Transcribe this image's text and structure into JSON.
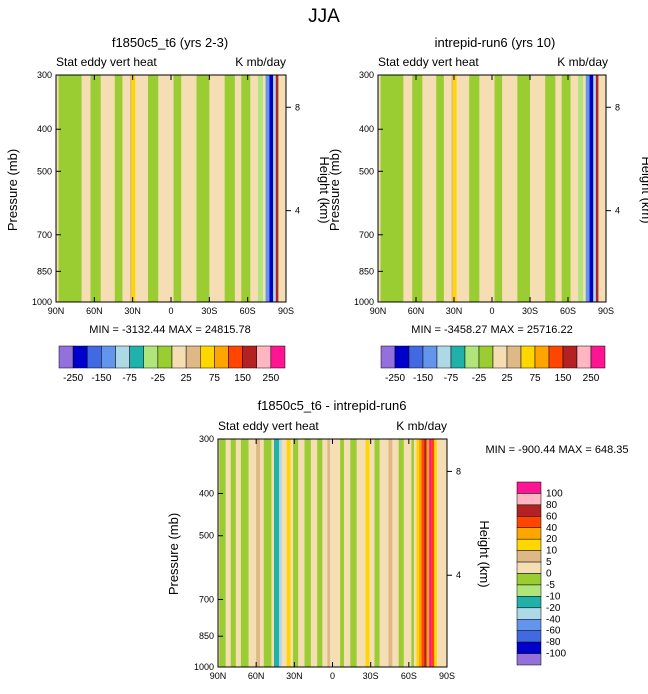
{
  "figure_title": "JJA",
  "colors": {
    "ctrl_fills": [
      "#9370db",
      "#0000cd",
      "#4169e1",
      "#6495ed",
      "#add8e6",
      "#20b2aa",
      "#b0e57c",
      "#9acd32",
      "#f5deb3",
      "#deb887",
      "#ffd700",
      "#ffa500",
      "#ff4500",
      "#b22222",
      "#ffb6c1",
      "#ff1493"
    ],
    "diff_fills": [
      "#9370db",
      "#0000cd",
      "#4169e1",
      "#6495ed",
      "#add8e6",
      "#20b2aa",
      "#b0e57c",
      "#9acd32",
      "#f5deb3",
      "#deb887",
      "#ffd700",
      "#ffa500",
      "#ff4500",
      "#b22222",
      "#ffb6c1",
      "#ff1493"
    ]
  },
  "chart_data": [
    {
      "id": "p1",
      "type": "heatmap",
      "title": "f1850c5_t6 (yrs 2-3)",
      "left_label": "Stat eddy vert heat",
      "right_label": "K mb/day",
      "xlabel": "",
      "ylabel": "Pressure (mb)",
      "ylabel_right": "Height (km)",
      "x_ticks": [
        "90N",
        "60N",
        "30N",
        "0",
        "30S",
        "60S",
        "90S"
      ],
      "y_ticks": [
        "300",
        "400",
        "500",
        "700",
        "850",
        "1000"
      ],
      "y_ticks_right": [
        "8",
        "4"
      ],
      "stats": "MIN = -3132.44  MAX = 24815.78",
      "field": {
        "background_level": 8,
        "columns": [
          {
            "lat": [
              -88,
              -70
            ],
            "level": 7
          },
          {
            "lat": [
              -63,
              -55
            ],
            "level": 7
          },
          {
            "lat": [
              -44,
              -38
            ],
            "level": 7
          },
          {
            "lat": [
              -32,
              -30
            ],
            "level": 9
          },
          {
            "lat": [
              -31,
              -28
            ],
            "level": 10
          },
          {
            "lat": [
              -18,
              -10
            ],
            "level": 7
          },
          {
            "lat": [
              2,
              8
            ],
            "level": 7
          },
          {
            "lat": [
              20,
              30
            ],
            "level": 7
          },
          {
            "lat": [
              42,
              50
            ],
            "level": 7
          },
          {
            "lat": [
              55,
              62
            ],
            "level": 7
          },
          {
            "lat": [
              68,
              72
            ],
            "level": 6
          },
          {
            "lat": [
              74,
              77
            ],
            "level": 3
          },
          {
            "lat": [
              77,
              80
            ],
            "level": 1
          },
          {
            "lat": [
              80,
              82
            ],
            "level": 4
          },
          {
            "lat": [
              82,
              84
            ],
            "level": 13
          }
        ]
      },
      "colorbar": {
        "orientation": "horizontal",
        "labels": [
          "-250",
          "-150",
          "-75",
          "-25",
          "25",
          "75",
          "150",
          "250"
        ]
      }
    },
    {
      "id": "p2",
      "type": "heatmap",
      "title": "intrepid-run6 (yrs 10)",
      "left_label": "Stat eddy vert heat",
      "right_label": "K mb/day",
      "xlabel": "",
      "ylabel": "Pressure (mb)",
      "ylabel_right": "Height (km)",
      "x_ticks": [
        "90N",
        "60N",
        "30N",
        "0",
        "30S",
        "60S",
        "90S"
      ],
      "y_ticks": [
        "300",
        "400",
        "500",
        "700",
        "850",
        "1000"
      ],
      "y_ticks_right": [
        "8",
        "4"
      ],
      "stats": "MIN = -3458.27  MAX = 25716.22",
      "field": {
        "background_level": 8,
        "columns": [
          {
            "lat": [
              -88,
              -70
            ],
            "level": 7
          },
          {
            "lat": [
              -63,
              -55
            ],
            "level": 7
          },
          {
            "lat": [
              -44,
              -38
            ],
            "level": 7
          },
          {
            "lat": [
              -32,
              -30
            ],
            "level": 9
          },
          {
            "lat": [
              -31,
              -28
            ],
            "level": 10
          },
          {
            "lat": [
              -18,
              -10
            ],
            "level": 7
          },
          {
            "lat": [
              2,
              8
            ],
            "level": 7
          },
          {
            "lat": [
              20,
              30
            ],
            "level": 7
          },
          {
            "lat": [
              42,
              50
            ],
            "level": 7
          },
          {
            "lat": [
              55,
              62
            ],
            "level": 7
          },
          {
            "lat": [
              68,
              72
            ],
            "level": 6
          },
          {
            "lat": [
              74,
              77
            ],
            "level": 3
          },
          {
            "lat": [
              77,
              80
            ],
            "level": 1
          },
          {
            "lat": [
              80,
              82
            ],
            "level": 4
          },
          {
            "lat": [
              82,
              84
            ],
            "level": 13
          }
        ]
      },
      "colorbar": {
        "orientation": "horizontal",
        "labels": [
          "-250",
          "-150",
          "-75",
          "-25",
          "25",
          "75",
          "150",
          "250"
        ]
      }
    },
    {
      "id": "p3",
      "type": "heatmap",
      "title": "f1850c5_t6 - intrepid-run6",
      "left_label": "Stat eddy vert heat",
      "right_label": "K mb/day",
      "xlabel": "",
      "ylabel": "Pressure (mb)",
      "ylabel_right": "Height (km)",
      "x_ticks": [
        "90N",
        "60N",
        "30N",
        "0",
        "30S",
        "60S",
        "90S"
      ],
      "y_ticks": [
        "300",
        "400",
        "500",
        "700",
        "850",
        "1000"
      ],
      "y_ticks_right": [
        "8",
        "4"
      ],
      "stats": "MIN = -900.44  MAX = 648.35",
      "field": {
        "background_level": 8,
        "columns": [
          {
            "lat": [
              -89,
              -84
            ],
            "level": 7
          },
          {
            "lat": [
              -80,
              -76
            ],
            "level": 7
          },
          {
            "lat": [
              -72,
              -66
            ],
            "level": 7
          },
          {
            "lat": [
              -60,
              -57
            ],
            "level": 9
          },
          {
            "lat": [
              -54,
              -48
            ],
            "level": 7
          },
          {
            "lat": [
              -46,
              -42
            ],
            "level": 5
          },
          {
            "lat": [
              -42,
              -40
            ],
            "level": 4
          },
          {
            "lat": [
              -36,
              -33
            ],
            "level": 10
          },
          {
            "lat": [
              -31,
              -27
            ],
            "level": 7
          },
          {
            "lat": [
              -22,
              -17
            ],
            "level": 7
          },
          {
            "lat": [
              -12,
              -8
            ],
            "level": 7
          },
          {
            "lat": [
              -4,
              -2
            ],
            "level": 9
          },
          {
            "lat": [
              6,
              9
            ],
            "level": 7
          },
          {
            "lat": [
              14,
              19
            ],
            "level": 7
          },
          {
            "lat": [
              26,
              29
            ],
            "level": 10
          },
          {
            "lat": [
              33,
              37
            ],
            "level": 7
          },
          {
            "lat": [
              44,
              47
            ],
            "level": 9
          },
          {
            "lat": [
              52,
              56
            ],
            "level": 7
          },
          {
            "lat": [
              62,
              64
            ],
            "level": 7
          },
          {
            "lat": [
              66,
              68
            ],
            "level": 10
          },
          {
            "lat": [
              68,
              70
            ],
            "level": 11
          },
          {
            "lat": [
              70,
              72
            ],
            "level": 12
          },
          {
            "lat": [
              72,
              74
            ],
            "level": 13
          },
          {
            "lat": [
              74,
              76
            ],
            "level": 11
          },
          {
            "lat": [
              76,
              78
            ],
            "level": 15
          },
          {
            "lat": [
              78,
              80
            ],
            "level": 12
          },
          {
            "lat": [
              80,
              82
            ],
            "level": 10
          }
        ]
      },
      "colorbar": {
        "orientation": "vertical",
        "labels": [
          "100",
          "80",
          "60",
          "40",
          "20",
          "10",
          "5",
          "0",
          "-5",
          "-10",
          "-20",
          "-40",
          "-60",
          "-80",
          "-100"
        ]
      }
    }
  ]
}
